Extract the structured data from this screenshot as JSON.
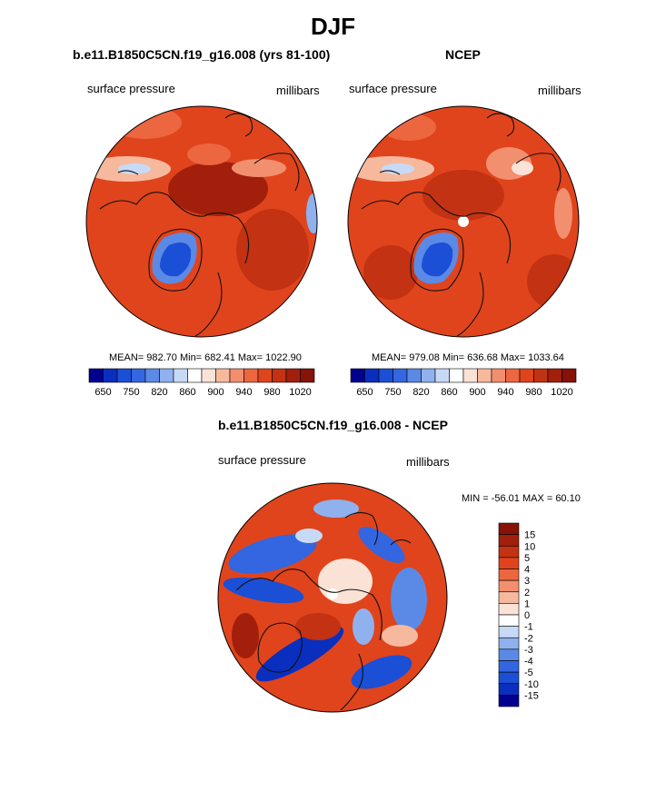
{
  "figure": {
    "title": "DJF"
  },
  "palette": {
    "absolute": [
      "#00008f",
      "#0a2fbf",
      "#1b4fd6",
      "#3366e0",
      "#5b8ae6",
      "#8fb2ee",
      "#c7daf5",
      "#ffffff",
      "#fbe2d6",
      "#f7b99e",
      "#f28f6e",
      "#ec6640",
      "#e0441c",
      "#c33212",
      "#a21f0c",
      "#861208"
    ],
    "difference": [
      "#00008f",
      "#0a2fbf",
      "#1b4fd6",
      "#3366e0",
      "#5b8ae6",
      "#8fb2ee",
      "#c7daf5",
      "#ffffff",
      "#fbe2d6",
      "#f7b99e",
      "#f28f6e",
      "#ec6640",
      "#e0441c",
      "#c33212",
      "#a21f0c",
      "#861208"
    ]
  },
  "panels": [
    {
      "title": "b.e11.B1850C5CN.f19_g16.008 (yrs 81-100)",
      "left_label": "surface pressure",
      "right_label": "millibars",
      "stats": "MEAN= 982.70  Min= 682.41  Max= 1022.90"
    },
    {
      "title": "NCEP",
      "left_label": "surface pressure",
      "right_label": "millibars",
      "stats": "MEAN= 979.08  Min= 636.68  Max= 1033.64"
    },
    {
      "title": "b.e11.B1850C5CN.f19_g16.008 - NCEP",
      "left_label": "surface pressure",
      "right_label": "millibars",
      "stats": "MIN = -56.01 MAX =  60.10"
    }
  ],
  "chart_data": [
    {
      "type": "heatmap",
      "projection": "north polar stereographic",
      "colorbar_levels": [
        "650",
        "750",
        "820",
        "860",
        "900",
        "940",
        "980",
        "1020"
      ],
      "mean": 982.7,
      "min": 682.41,
      "max": 1022.9
    },
    {
      "type": "heatmap",
      "projection": "north polar stereographic",
      "colorbar_levels": [
        "650",
        "750",
        "820",
        "860",
        "900",
        "940",
        "980",
        "1020"
      ],
      "mean": 979.08,
      "min": 636.68,
      "max": 1033.64
    },
    {
      "type": "heatmap",
      "projection": "north polar stereographic",
      "colorbar_levels": [
        "15",
        "10",
        "5",
        "4",
        "3",
        "2",
        "1",
        "0",
        "-1",
        "-2",
        "-3",
        "-4",
        "-5",
        "-10",
        "-15"
      ],
      "min": -56.01,
      "max": 60.1
    }
  ]
}
